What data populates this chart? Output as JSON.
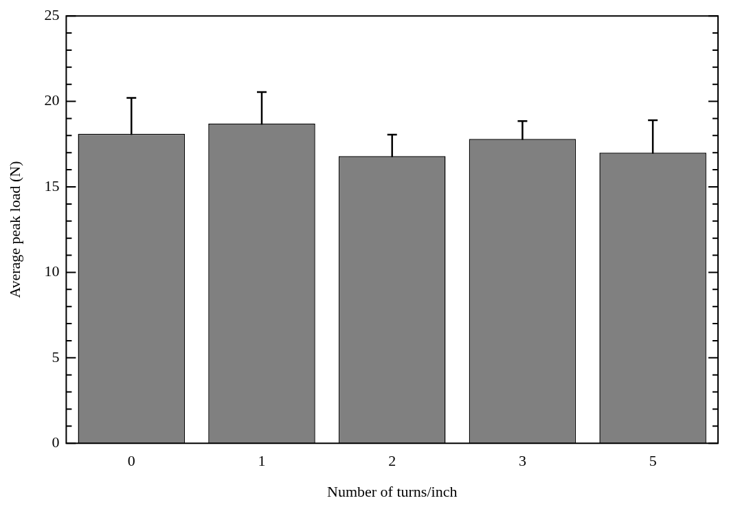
{
  "chart_data": {
    "type": "bar",
    "xlabel": "Number of turns/inch",
    "ylabel": "Average peak load (N)",
    "categories": [
      "0",
      "1",
      "2",
      "3",
      "5"
    ],
    "values": [
      18.1,
      18.7,
      16.8,
      17.8,
      17.0
    ],
    "errors": [
      2.1,
      1.85,
      1.25,
      1.05,
      1.9
    ],
    "color": "#808080",
    "ylim": [
      0,
      25
    ],
    "yticks": [
      0,
      {
        "value": 1,
        "label": null
      },
      {
        "value": 2,
        "label": null
      },
      {
        "value": 3,
        "label": null
      },
      {
        "value": 4,
        "label": null
      },
      5,
      {
        "value": 6,
        "label": null
      },
      {
        "value": 7,
        "label": null
      },
      {
        "value": 8,
        "label": null
      },
      {
        "value": 9,
        "label": null
      },
      10,
      {
        "value": 11,
        "label": null
      },
      {
        "value": 12,
        "label": null
      },
      {
        "value": 13,
        "label": null
      },
      {
        "value": 14,
        "label": null
      },
      15,
      {
        "value": 16,
        "label": null
      },
      {
        "value": 17,
        "label": null
      },
      {
        "value": 18,
        "label": null
      },
      {
        "value": 19,
        "label": null
      },
      20,
      {
        "value": 21,
        "label": null
      },
      {
        "value": 22,
        "label": null
      },
      {
        "value": 23,
        "label": null
      },
      {
        "value": 24,
        "label": null
      },
      25
    ],
    "grid": false,
    "legend": false
  }
}
